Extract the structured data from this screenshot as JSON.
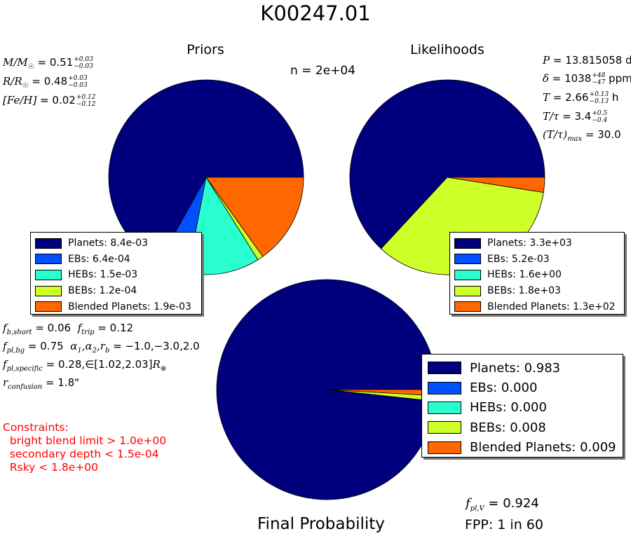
{
  "title": "K00247.01",
  "n_label": "n = 2e+04",
  "colors": {
    "Planets": "#00007f",
    "EBs": "#0050ff",
    "HEBs": "#29ffce",
    "BEBs": "#ceff29",
    "Blended Planets": "#ff6800"
  },
  "chart_data": [
    {
      "type": "pie",
      "title": "Priors",
      "slices": [
        {
          "label": "Planets",
          "value": 0.0084,
          "legend": "Planets: 8.4e-03"
        },
        {
          "label": "EBs",
          "value": 0.00064,
          "legend": "EBs: 6.4e-04"
        },
        {
          "label": "HEBs",
          "value": 0.0015,
          "legend": "HEBs: 1.5e-03"
        },
        {
          "label": "BEBs",
          "value": 0.00012,
          "legend": "BEBs: 1.2e-04"
        },
        {
          "label": "Blended Planets",
          "value": 0.0019,
          "legend": "Blended Planets: 1.9e-03"
        }
      ]
    },
    {
      "type": "pie",
      "title": "Likelihoods",
      "slices": [
        {
          "label": "Planets",
          "value": 3300,
          "legend": "Planets: 3.3e+03"
        },
        {
          "label": "EBs",
          "value": 0.0052,
          "legend": "EBs: 5.2e-03"
        },
        {
          "label": "HEBs",
          "value": 1.6,
          "legend": "HEBs: 1.6e+00"
        },
        {
          "label": "BEBs",
          "value": 1800,
          "legend": "BEBs: 1.8e+03"
        },
        {
          "label": "Blended Planets",
          "value": 130,
          "legend": "Blended Planets: 1.3e+02"
        }
      ]
    },
    {
      "type": "pie",
      "title": "Final Probability",
      "slices": [
        {
          "label": "Planets",
          "value": 0.983,
          "legend": "Planets: 0.983"
        },
        {
          "label": "EBs",
          "value": 0.0,
          "legend": "EBs: 0.000"
        },
        {
          "label": "HEBs",
          "value": 0.0,
          "legend": "HEBs: 0.000"
        },
        {
          "label": "BEBs",
          "value": 0.008,
          "legend": "BEBs: 0.008"
        },
        {
          "label": "Blended Planets",
          "value": 0.009,
          "legend": "Blended Planets: 0.009"
        }
      ]
    }
  ],
  "stellar": {
    "mass": "0.51",
    "mass_up": "+0.03",
    "mass_dn": "−0.03",
    "radius": "0.48",
    "radius_up": "+0.03",
    "radius_dn": "−0.03",
    "feh": "0.02",
    "feh_up": "+0.12",
    "feh_dn": "−0.12"
  },
  "transit": {
    "period": "13.815058",
    "period_unit": "d",
    "depth": "1038",
    "depth_up": "+48",
    "depth_dn": "−47",
    "depth_unit": "ppm",
    "duration": "2.66",
    "duration_up": "+0.13",
    "duration_dn": "−0.13",
    "duration_unit": "h",
    "ttau": "3.4",
    "ttau_up": "+0.5",
    "ttau_dn": "−0.4",
    "ttau_max": "30.0"
  },
  "params": {
    "fb_short": "0.06",
    "f_trip": "0.12",
    "fpl_bg": "0.75",
    "alphas": "−1.0,−3.0,2.0",
    "fpl_specific": "0.28,",
    "range": "[1.02,2.03]",
    "r_confusion": "1.8\""
  },
  "constraints": {
    "heading": "Constraints:",
    "items": [
      "  bright blend limit > 1.0e+00",
      "  secondary depth < 1.5e-04",
      "  Rsky < 1.8e+00"
    ]
  },
  "final": {
    "fpl_v": "0.924",
    "fpp": "FPP: 1 in 60"
  }
}
